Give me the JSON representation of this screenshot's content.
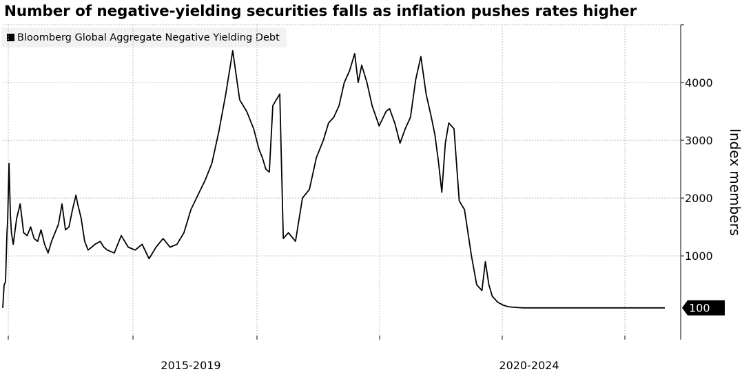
{
  "chart_data": {
    "type": "line",
    "title": "Number of negative-yielding securities falls as inflation pushes rates higher",
    "ylabel": "Index members",
    "xlabel": "",
    "x_tick_labels": [
      "2015-2019",
      "2020-2024"
    ],
    "ylim": [
      -450,
      5000
    ],
    "y_ticks": [
      1000,
      2000,
      3000,
      4000
    ],
    "grid": true,
    "legend_position": "top-left",
    "last_value_label": "100",
    "series": [
      {
        "name": "Bloomberg Global Aggregate Negative Yielding Debt",
        "color": "#000000",
        "x": [
          2014.0,
          2014.04,
          2014.08,
          2014.12,
          2014.14,
          2014.18,
          2014.22,
          2014.25,
          2014.3,
          2014.4,
          2014.5,
          2014.6,
          2014.7,
          2014.8,
          2014.9,
          2015.0,
          2015.1,
          2015.2,
          2015.3,
          2015.4,
          2015.5,
          2015.6,
          2015.7,
          2015.8,
          2015.9,
          2016.0,
          2016.1,
          2016.15,
          2016.25,
          2016.35,
          2016.45,
          2016.55,
          2016.65,
          2016.8,
          2016.9,
          2017.0,
          2017.2,
          2017.4,
          2017.6,
          2017.8,
          2018.0,
          2018.2,
          2018.4,
          2018.6,
          2018.8,
          2019.0,
          2019.2,
          2019.4,
          2019.6,
          2019.8,
          2020.0,
          2020.2,
          2020.4,
          2020.6,
          2020.8,
          2021.0,
          2021.2,
          2021.35,
          2021.45,
          2021.55,
          2021.65,
          2021.75,
          2021.85,
          2021.95,
          2022.05,
          2022.2,
          2022.4,
          2022.6,
          2022.8,
          2023.0,
          2023.2,
          2023.35,
          2023.5,
          2023.65,
          2023.8,
          2023.95,
          2024.1,
          2024.2,
          2024.3,
          2024.45,
          2024.6,
          2024.8,
          2025.0,
          2025.1,
          2025.25,
          2025.4,
          2025.55,
          2025.7,
          2025.85,
          2026.0,
          2026.15,
          2026.3,
          2026.4,
          2026.5,
          2026.6,
          2026.7,
          2026.8,
          2026.95,
          2027.1,
          2027.25,
          2027.45,
          2027.6,
          2027.75,
          2027.85,
          2027.95,
          2028.05,
          2028.2,
          2028.35,
          2028.5,
          2028.65,
          2028.8,
          2028.95,
          2029.1,
          2029.25,
          2029.4,
          2029.5,
          2029.6,
          2029.75,
          2029.9,
          2030.0,
          2030.05,
          2030.15,
          2030.3,
          2030.45,
          2030.55,
          2030.65,
          2030.75,
          2030.85,
          2031.0,
          2031.1,
          2031.2,
          2031.3,
          2031.35,
          2031.45,
          2031.55,
          2031.65,
          2031.75,
          2031.9,
          2032.05,
          2032.2,
          2032.35,
          2032.45,
          2032.55,
          2032.7,
          2032.85,
          2033.0
        ],
        "y": [
          100,
          500,
          550,
          1400,
          1600,
          2600,
          1700,
          1400,
          1200,
          1650,
          1900,
          1400,
          1350,
          1500,
          1300,
          1250,
          1450,
          1200,
          1050,
          1250,
          1400,
          1550,
          1900,
          1450,
          1500,
          1800,
          2050,
          1900,
          1650,
          1250,
          1100,
          1150,
          1200,
          1250,
          1150,
          1100,
          1050,
          1350,
          1150,
          1100,
          1200,
          950,
          1150,
          1300,
          1150,
          1200,
          1400,
          1800,
          2050,
          2300,
          2600,
          3150,
          3800,
          4550,
          3700,
          3500,
          3200,
          2850,
          2700,
          2500,
          2450,
          3600,
          3700,
          3800,
          1300,
          1400,
          1250,
          2000,
          2150,
          2700,
          3000,
          3300,
          3400,
          3600,
          4000,
          4200,
          4500,
          4000,
          4300,
          4000,
          3600,
          3250,
          3500,
          3550,
          3300,
          2950,
          3200,
          3400,
          4050,
          4450,
          3800,
          3400,
          3100,
          2650,
          2100,
          2950,
          3300,
          3200,
          1950,
          1800,
          1000,
          500,
          400,
          900,
          500,
          300,
          200,
          150,
          120,
          110,
          105,
          100,
          100,
          100,
          100,
          100,
          100,
          100,
          100,
          100,
          100,
          100,
          100,
          100,
          100,
          100,
          100,
          100,
          100,
          100,
          100,
          100,
          100,
          100,
          100,
          100,
          100,
          100,
          100,
          100,
          100,
          100,
          100,
          100,
          100,
          100
        ]
      }
    ]
  }
}
